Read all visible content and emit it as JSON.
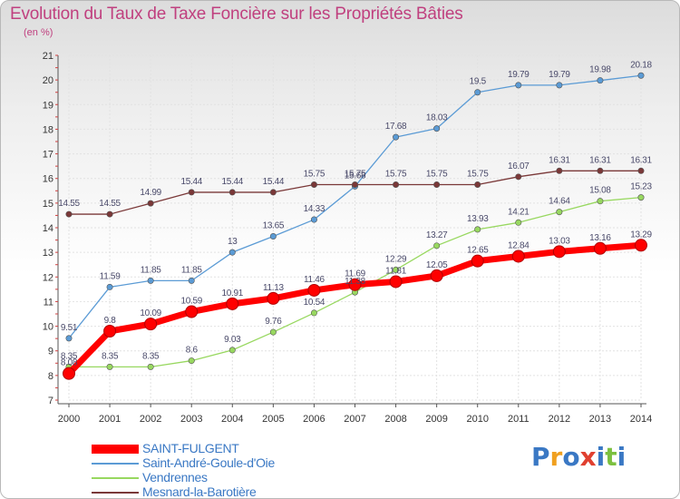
{
  "title": "Evolution du Taux de Taxe Foncière sur les Propriétés Bâties",
  "unit_label": "(en %)",
  "logo": {
    "chars": [
      {
        "c": "P",
        "color": "#3a78c4"
      },
      {
        "c": "r",
        "color": "#f0a020"
      },
      {
        "c": "o",
        "color": "#3a78c4"
      },
      {
        "c": "x",
        "color": "#e04030"
      },
      {
        "c": "i",
        "color": "#3a78c4"
      },
      {
        "c": "t",
        "color": "#7cc040"
      },
      {
        "c": "i",
        "color": "#3a78c4"
      }
    ]
  },
  "chart_data": {
    "type": "line",
    "title": "Evolution du Taux de Taxe Foncière sur les Propriétés Bâties",
    "ylabel": "(en %)",
    "xlabel": "",
    "x": [
      "2000",
      "2001",
      "2002",
      "2003",
      "2004",
      "2005",
      "2006",
      "2007",
      "2008",
      "2009",
      "2010",
      "2011",
      "2012",
      "2013",
      "2014"
    ],
    "ylim": [
      7,
      21
    ],
    "yticks": [
      "7",
      "8",
      "9",
      "10",
      "11",
      "12",
      "13",
      "14",
      "15",
      "16",
      "17",
      "18",
      "19",
      "20",
      "21"
    ],
    "grid": true,
    "legend_position": "bottom-left",
    "series": [
      {
        "name": "SAINT-FULGENT",
        "color": "#ff0000",
        "highlight": true,
        "values": [
          8.08,
          9.8,
          10.09,
          10.59,
          10.91,
          11.13,
          11.46,
          11.69,
          11.81,
          12.05,
          12.65,
          12.84,
          13.03,
          13.16,
          13.29
        ],
        "labels": [
          "8.08",
          "9.8",
          "10.09",
          "10.59",
          "10.91",
          "11.13",
          "11.46",
          "11.69",
          "11.81",
          "12.05",
          "12.65",
          "12.84",
          "13.03",
          "13.16",
          "13.29"
        ]
      },
      {
        "name": "Saint-André-Goule-d'Oie",
        "color": "#5b9bd5",
        "values": [
          9.51,
          11.59,
          11.85,
          11.85,
          13,
          13.65,
          14.33,
          15.68,
          17.68,
          18.03,
          19.5,
          19.79,
          19.79,
          19.98,
          20.18
        ],
        "labels": [
          "9.51",
          "11.59",
          "11.85",
          "11.85",
          "13",
          "13.65",
          "14.33",
          "15.68",
          "17.68",
          "18.03",
          "19.5",
          "19.79",
          "19.79",
          "19.98",
          "20.18"
        ]
      },
      {
        "name": "Vendrennes",
        "color": "#98d860",
        "values": [
          8.35,
          8.35,
          8.35,
          8.6,
          9.03,
          9.76,
          10.54,
          11.38,
          12.29,
          13.27,
          13.93,
          14.21,
          14.64,
          15.08,
          15.23
        ],
        "labels": [
          "8.35",
          "8.35",
          "8.35",
          "8.6",
          "9.03",
          "9.76",
          "10.54",
          "11.38",
          "12.29",
          "13.27",
          "13.93",
          "14.21",
          "14.64",
          "15.08",
          "15.23"
        ]
      },
      {
        "name": "Mesnard-la-Barotière",
        "color": "#7a3838",
        "values": [
          14.55,
          14.55,
          14.99,
          15.44,
          15.44,
          15.44,
          15.75,
          15.75,
          15.75,
          15.75,
          15.75,
          16.07,
          16.31,
          16.31,
          16.31
        ],
        "labels": [
          "14.55",
          "14.55",
          "14.99",
          "15.44",
          "15.44",
          "15.44",
          "15.75",
          "15.75",
          "15.75",
          "15.75",
          "15.75",
          "16.07",
          "16.31",
          "16.31",
          "16.31"
        ]
      }
    ]
  }
}
